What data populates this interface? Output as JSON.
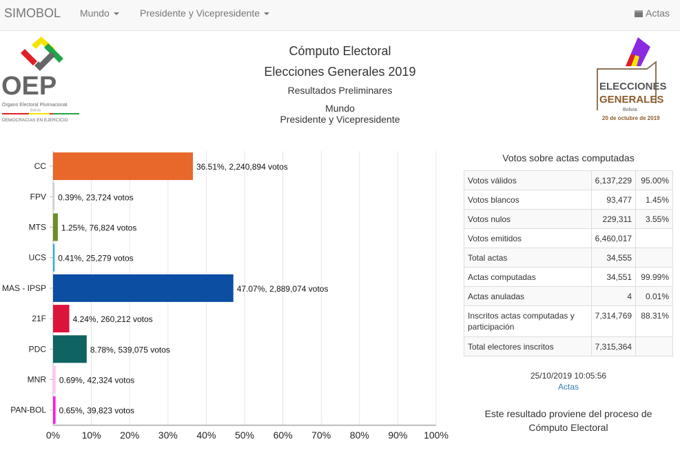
{
  "nav": {
    "brand": "SIMOBOL",
    "mundo": "Mundo",
    "presidente": "Presidente y Vicepresidente",
    "actas": "Actas"
  },
  "header": {
    "title": "Cómputo Electoral",
    "subtitle": "Elecciones Generales 2019",
    "status": "Resultados Preliminares",
    "scope": "Mundo",
    "election": "Presidente y Vicepresidente"
  },
  "logos": {
    "left": "OEP Órgano Electoral Plurinacional Bolivia DEMOCRACIAS EN EJERCICIO",
    "right": "ELECCIONES GENERALES Bolivia 20 de octubre de 2019"
  },
  "chart_data": {
    "type": "bar",
    "orientation": "horizontal",
    "categories": [
      "CC",
      "FPV",
      "MTS",
      "UCS",
      "MAS - IPSP",
      "21F",
      "PDC",
      "MNR",
      "PAN-BOL"
    ],
    "values": [
      36.51,
      0.39,
      1.25,
      0.41,
      47.07,
      4.24,
      8.78,
      0.69,
      0.65
    ],
    "votes": [
      "2,240,894",
      "23,724",
      "76,824",
      "25,279",
      "2,889,074",
      "260,212",
      "539,075",
      "42,324",
      "39,823"
    ],
    "labels": [
      "36.51%,  2,240,894 votos",
      "0.39%,  23,724 votos",
      "1.25%,  76,824 votos",
      "0.41%,  25,279 votos",
      "47.07%,  2,889,074 votos",
      "4.24%,  260,212 votos",
      "8.78%,  539,075 votos",
      "0.69%,  42,324 votos",
      "0.65%,  39,823 votos"
    ],
    "colors": [
      "#e8672b",
      "#d0d0d0",
      "#6b8e23",
      "#29abe2",
      "#0b4ea2",
      "#dc143c",
      "#0f6360",
      "#ffc8f0",
      "#ff1ade"
    ],
    "xlim": [
      0,
      100
    ],
    "xticks": [
      "0%",
      "10%",
      "20%",
      "30%",
      "40%",
      "50%",
      "60%",
      "70%",
      "80%",
      "90%",
      "100%"
    ],
    "grid": true
  },
  "summary": {
    "title": "Votos sobre actas computadas",
    "rows": [
      [
        "Votos válidos",
        "6,137,229",
        "95.00%"
      ],
      [
        "Votos blancos",
        "93,477",
        "1.45%"
      ],
      [
        "Votos nulos",
        "229,311",
        "3.55%"
      ],
      [
        "Votos emitidos",
        "6,460,017",
        ""
      ],
      [
        "Total actas",
        "34,555",
        ""
      ],
      [
        "Actas computadas",
        "34,551",
        "99.99%"
      ],
      [
        "Actas anuladas",
        "4",
        "0.01%"
      ],
      [
        "Inscritos actas computadas y participación",
        "7,314,769",
        "88.31%"
      ],
      [
        "Total electores inscritos",
        "7,315,364",
        ""
      ]
    ]
  },
  "footer": {
    "timestamp": "25/10/2019 10:05:56",
    "link": "Actas",
    "note1": "Este resultado proviene del proceso de",
    "note2": "Cómputo Electoral"
  }
}
